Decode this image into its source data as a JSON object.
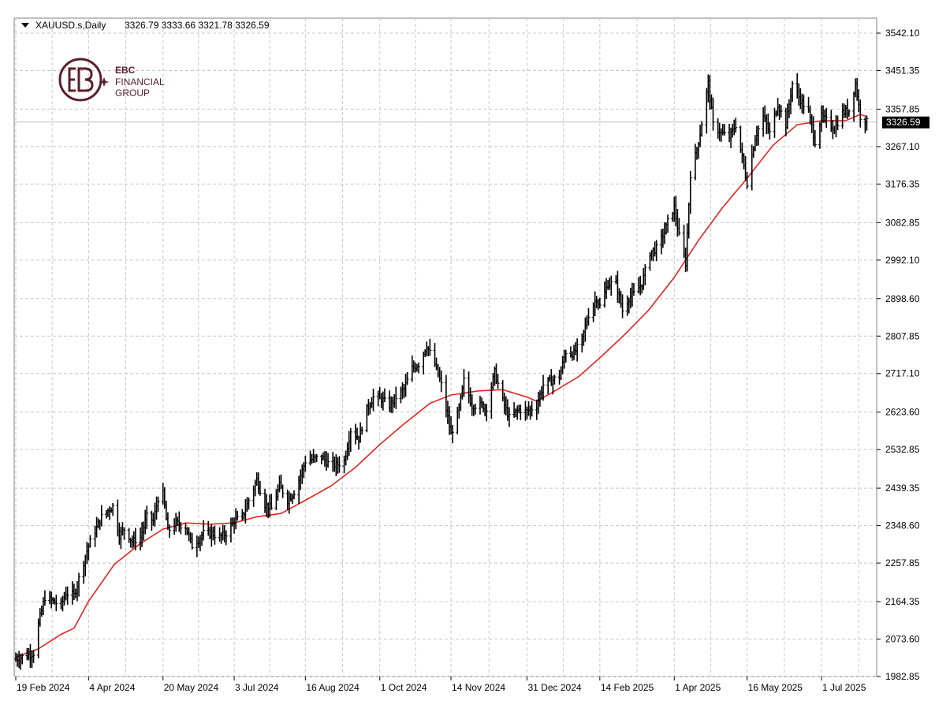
{
  "header": {
    "symbol": "XAUUSD.s,Daily",
    "ohlc": "3326.79 3333.66 3321.78 3326.59",
    "dropdown_icon": "triangle-down-icon"
  },
  "logo": {
    "line1": "EBC",
    "line2": "FINANCIAL",
    "line3": "GROUP",
    "icon": "ebc-logo-icon",
    "color": "#5a1f2a"
  },
  "colors": {
    "bars": "#000000",
    "moving_average": "#e8231f",
    "grid": "#c8c8c8",
    "current_price_line": "#bfbfbf",
    "price_badge_bg": "#000000",
    "price_badge_text": "#ffffff"
  },
  "chart_data": {
    "type": "ohlc",
    "symbol": "XAUUSD.s",
    "timeframe": "Daily",
    "current_price": "3326.59",
    "y_ticks": [
      "3542.10",
      "3451.35",
      "3357.85",
      "3267.10",
      "3176.35",
      "3082.85",
      "2992.10",
      "2898.60",
      "2807.85",
      "2717.10",
      "2623.60",
      "2532.85",
      "2439.35",
      "2348.60",
      "2257.85",
      "2164.35",
      "2073.60",
      "1982.85"
    ],
    "x_ticks": [
      "19 Feb 2024",
      "4 Apr 2024",
      "20 May 2024",
      "3 Jul 2024",
      "16 Aug 2024",
      "1 Oct 2024",
      "14 Nov 2024",
      "31 Dec 2024",
      "14 Feb 2025",
      "1 Apr 2025",
      "16 May 2025",
      "1 Jul 2025"
    ],
    "ylim": [
      1982.85,
      3542.1
    ],
    "grid": true,
    "close_path": [
      [
        "19 Feb 2024",
        2025
      ],
      [
        "1 Mar 2024",
        2040
      ],
      [
        "4 Mar 2024",
        2110
      ],
      [
        "8 Mar 2024",
        2175
      ],
      [
        "13 Mar 2024",
        2165
      ],
      [
        "18 Mar 2024",
        2155
      ],
      [
        "21 Mar 2024",
        2185
      ],
      [
        "26 Mar 2024",
        2180
      ],
      [
        "1 Apr 2024",
        2260
      ],
      [
        "4 Apr 2024",
        2300
      ],
      [
        "8 Apr 2024",
        2335
      ],
      [
        "12 Apr 2024",
        2370
      ],
      [
        "16 Apr 2024",
        2385
      ],
      [
        "19 Apr 2024",
        2395
      ],
      [
        "23 Apr 2024",
        2325
      ],
      [
        "26 Apr 2024",
        2340
      ],
      [
        "1 May 2024",
        2310
      ],
      [
        "6 May 2024",
        2320
      ],
      [
        "10 May 2024",
        2370
      ],
      [
        "14 May 2024",
        2360
      ],
      [
        "17 May 2024",
        2415
      ],
      [
        "20 May 2024",
        2425
      ],
      [
        "23 May 2024",
        2335
      ],
      [
        "28 May 2024",
        2355
      ],
      [
        "3 Jun 2024",
        2345
      ],
      [
        "7 Jun 2024",
        2300
      ],
      [
        "11 Jun 2024",
        2315
      ],
      [
        "14 Jun 2024",
        2330
      ],
      [
        "19 Jun 2024",
        2330
      ],
      [
        "24 Jun 2024",
        2320
      ],
      [
        "28 Jun 2024",
        2330
      ],
      [
        "3 Jul 2024",
        2360
      ],
      [
        "8 Jul 2024",
        2370
      ],
      [
        "12 Jul 2024",
        2410
      ],
      [
        "17 Jul 2024",
        2460
      ],
      [
        "22 Jul 2024",
        2400
      ],
      [
        "26 Jul 2024",
        2390
      ],
      [
        "31 Jul 2024",
        2445
      ],
      [
        "5 Aug 2024",
        2410
      ],
      [
        "9 Aug 2024",
        2430
      ],
      [
        "13 Aug 2024",
        2470
      ],
      [
        "16 Aug 2024",
        2505
      ],
      [
        "21 Aug 2024",
        2510
      ],
      [
        "26 Aug 2024",
        2515
      ],
      [
        "30 Aug 2024",
        2500
      ],
      [
        "4 Sep 2024",
        2495
      ],
      [
        "9 Sep 2024",
        2505
      ],
      [
        "13 Sep 2024",
        2580
      ],
      [
        "18 Sep 2024",
        2560
      ],
      [
        "23 Sep 2024",
        2630
      ],
      [
        "27 Sep 2024",
        2660
      ],
      [
        "2 Oct 2024",
        2655
      ],
      [
        "7 Oct 2024",
        2640
      ],
      [
        "11 Oct 2024",
        2660
      ],
      [
        "16 Oct 2024",
        2680
      ],
      [
        "21 Oct 2024",
        2730
      ],
      [
        "25 Oct 2024",
        2740
      ],
      [
        "30 Oct 2024",
        2785
      ],
      [
        "4 Nov 2024",
        2740
      ],
      [
        "8 Nov 2024",
        2690
      ],
      [
        "12 Nov 2024",
        2610
      ],
      [
        "14 Nov 2024",
        2570
      ],
      [
        "19 Nov 2024",
        2630
      ],
      [
        "22 Nov 2024",
        2700
      ],
      [
        "27 Nov 2024",
        2640
      ],
      [
        "2 Dec 2024",
        2640
      ],
      [
        "6 Dec 2024",
        2635
      ],
      [
        "11 Dec 2024",
        2720
      ],
      [
        "16 Dec 2024",
        2650
      ],
      [
        "20 Dec 2024",
        2610
      ],
      [
        "26 Dec 2024",
        2630
      ],
      [
        "31 Dec 2024",
        2625
      ],
      [
        "6 Jan 2025",
        2640
      ],
      [
        "10 Jan 2025",
        2690
      ],
      [
        "15 Jan 2025",
        2700
      ],
      [
        "20 Jan 2025",
        2710
      ],
      [
        "24 Jan 2025",
        2770
      ],
      [
        "29 Jan 2025",
        2765
      ],
      [
        "3 Feb 2025",
        2800
      ],
      [
        "7 Feb 2025",
        2860
      ],
      [
        "12 Feb 2025",
        2900
      ],
      [
        "14 Feb 2025",
        2880
      ],
      [
        "19 Feb 2025",
        2935
      ],
      [
        "24 Feb 2025",
        2935
      ],
      [
        "28 Feb 2025",
        2870
      ],
      [
        "4 Mar 2025",
        2900
      ],
      [
        "7 Mar 2025",
        2910
      ],
      [
        "12 Mar 2025",
        2935
      ],
      [
        "17 Mar 2025",
        3010
      ],
      [
        "21 Mar 2025",
        3020
      ],
      [
        "26 Mar 2025",
        3060
      ],
      [
        "28 Mar 2025",
        3085
      ],
      [
        "1 Apr 2025",
        3120
      ],
      [
        "4 Apr 2025",
        3050
      ],
      [
        "8 Apr 2025",
        2985
      ],
      [
        "11 Apr 2025",
        3200
      ],
      [
        "15 Apr 2025",
        3260
      ],
      [
        "17 Apr 2025",
        3300
      ],
      [
        "22 Apr 2025",
        3420
      ],
      [
        "25 Apr 2025",
        3320
      ],
      [
        "30 Apr 2025",
        3300
      ],
      [
        "5 May 2025",
        3290
      ],
      [
        "9 May 2025",
        3320
      ],
      [
        "14 May 2025",
        3220
      ],
      [
        "16 May 2025",
        3180
      ],
      [
        "21 May 2025",
        3290
      ],
      [
        "26 May 2025",
        3340
      ],
      [
        "30 May 2025",
        3300
      ],
      [
        "4 Jun 2025",
        3370
      ],
      [
        "9 Jun 2025",
        3320
      ],
      [
        "13 Jun 2025",
        3420
      ],
      [
        "18 Jun 2025",
        3380
      ],
      [
        "23 Jun 2025",
        3350
      ],
      [
        "27 Jun 2025",
        3280
      ],
      [
        "1 Jul 2025",
        3340
      ],
      [
        "4 Jul 2025",
        3330
      ],
      [
        "9 Jul 2025",
        3310
      ],
      [
        "14 Jul 2025",
        3350
      ],
      [
        "18 Jul 2025",
        3355
      ],
      [
        "22 Jul 2025",
        3420
      ],
      [
        "25 Jul 2025",
        3340
      ],
      [
        "29 Jul 2025",
        3326.59
      ]
    ],
    "moving_average_path": [
      [
        "19 Feb 2024",
        2030
      ],
      [
        "4 Mar 2024",
        2050
      ],
      [
        "18 Mar 2024",
        2085
      ],
      [
        "26 Mar 2024",
        2100
      ],
      [
        "4 Apr 2024",
        2165
      ],
      [
        "20 Apr 2024",
        2255
      ],
      [
        "6 May 2024",
        2305
      ],
      [
        "20 May 2024",
        2340
      ],
      [
        "3 Jun 2024",
        2355
      ],
      [
        "18 Jun 2024",
        2352
      ],
      [
        "3 Jul 2024",
        2355
      ],
      [
        "17 Jul 2024",
        2370
      ],
      [
        "1 Aug 2024",
        2378
      ],
      [
        "16 Aug 2024",
        2410
      ],
      [
        "1 Sep 2024",
        2445
      ],
      [
        "16 Sep 2024",
        2490
      ],
      [
        "1 Oct 2024",
        2545
      ],
      [
        "16 Oct 2024",
        2595
      ],
      [
        "1 Nov 2024",
        2645
      ],
      [
        "14 Nov 2024",
        2665
      ],
      [
        "1 Dec 2024",
        2675
      ],
      [
        "16 Dec 2024",
        2678
      ],
      [
        "31 Dec 2024",
        2660
      ],
      [
        "6 Jan 2025",
        2650
      ],
      [
        "15 Jan 2025",
        2670
      ],
      [
        "1 Feb 2025",
        2710
      ],
      [
        "14 Feb 2025",
        2755
      ],
      [
        "1 Mar 2025",
        2810
      ],
      [
        "16 Mar 2025",
        2870
      ],
      [
        "1 Apr 2025",
        2950
      ],
      [
        "16 Apr 2025",
        3040
      ],
      [
        "1 May 2025",
        3120
      ],
      [
        "16 May 2025",
        3190
      ],
      [
        "1 Jun 2025",
        3270
      ],
      [
        "16 Jun 2025",
        3320
      ],
      [
        "1 Jul 2025",
        3330
      ],
      [
        "16 Jul 2025",
        3330
      ],
      [
        "25 Jul 2025",
        3345
      ],
      [
        "29 Jul 2025",
        3340
      ]
    ]
  }
}
